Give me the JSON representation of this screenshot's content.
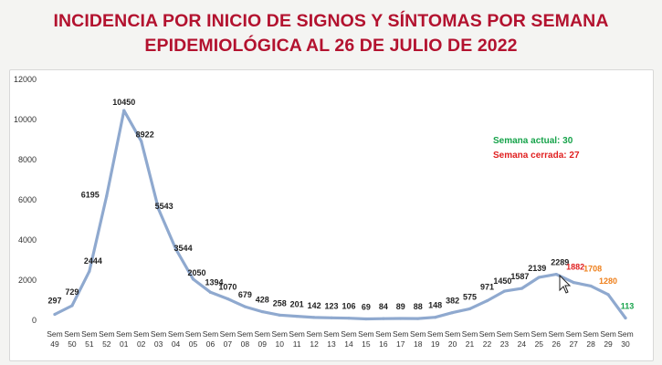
{
  "title_line1": "INCIDENCIA POR INICIO DE SIGNOS Y SÍNTOMAS POR SEMANA",
  "title_line2": "EPIDEMIOLÓGICA AL 26 DE JULIO DE 2022",
  "colors": {
    "title": "#b3122f",
    "line": "#8fa9cf",
    "label_default": "#222222",
    "label_orange": "#ee7f1a",
    "label_red": "#e02020",
    "label_green": "#16a34a"
  },
  "notes": {
    "current_week": "Semana actual: 30",
    "closed_week": "Semana cerrada: 27"
  },
  "chart_data": {
    "type": "line",
    "title": "INCIDENCIA POR INICIO DE SIGNOS Y SÍNTOMAS POR SEMANA EPIDEMIOLÓGICA AL 26 DE JULIO DE 2022",
    "xlabel": "",
    "ylabel": "",
    "ylim": [
      0,
      12000
    ],
    "yticks": [
      0,
      2000,
      4000,
      6000,
      8000,
      10000,
      12000
    ],
    "ytick_labels": [
      "0",
      "2000",
      "4000",
      "6000",
      "8000",
      "10000",
      "12000"
    ],
    "grid": false,
    "categories": [
      "Sem 49",
      "Sem 50",
      "Sem 51",
      "Sem 52",
      "Sem 01",
      "Sem 02",
      "Sem 03",
      "Sem 04",
      "Sem 05",
      "Sem 06",
      "Sem 07",
      "Sem 08",
      "Sem 09",
      "Sem 10",
      "Sem 11",
      "Sem 12",
      "Sem 13",
      "Sem 14",
      "Sem 15",
      "Sem 16",
      "Sem 17",
      "Sem 18",
      "Sem 19",
      "Sem 20",
      "Sem 21",
      "Sem 22",
      "Sem 23",
      "Sem 24",
      "Sem 25",
      "Sem 26",
      "Sem 27",
      "Sem 28",
      "Sem 29",
      "Sem 30"
    ],
    "values": [
      297,
      729,
      2444,
      6195,
      10450,
      8922,
      5543,
      3544,
      2050,
      1394,
      1070,
      679,
      428,
      258,
      201,
      142,
      123,
      106,
      69,
      84,
      89,
      88,
      148,
      382,
      575,
      971,
      1450,
      1587,
      2139,
      2289,
      1882,
      1708,
      1280,
      113
    ],
    "data_labels": [
      "297",
      "729",
      "2444",
      "6195",
      "10450",
      "8922",
      "5543",
      "3544",
      "2050",
      "1394",
      "1070",
      "679",
      "428",
      "258",
      "201",
      "142",
      "123",
      "106",
      "69",
      "84",
      "89",
      "88",
      "148",
      "382",
      "575",
      "971",
      "1450",
      "1587",
      "2139",
      "2289",
      "1882",
      "1708",
      "1280",
      "113"
    ],
    "label_colors": [
      "default",
      "default",
      "default",
      "default",
      "default",
      "default",
      "default",
      "default",
      "default",
      "default",
      "default",
      "default",
      "default",
      "default",
      "default",
      "default",
      "default",
      "default",
      "default",
      "default",
      "default",
      "default",
      "default",
      "default",
      "default",
      "default",
      "default",
      "default",
      "default",
      "default",
      "red",
      "orange",
      "orange",
      "green"
    ],
    "annotations": [
      "Semana actual: 30",
      "Semana cerrada: 27"
    ]
  }
}
